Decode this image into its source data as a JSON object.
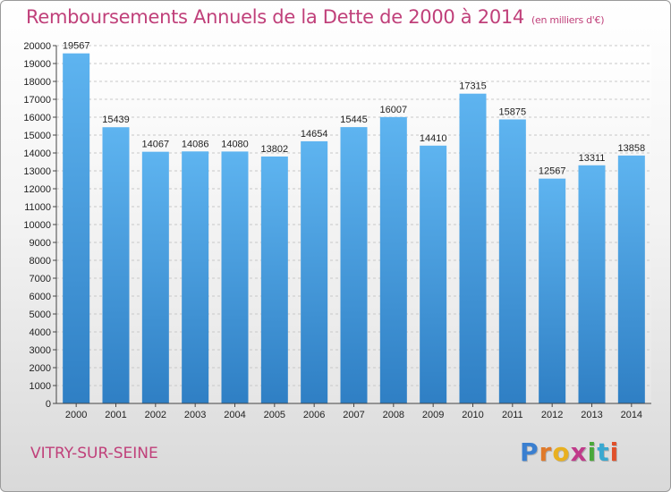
{
  "chart_data": {
    "type": "bar",
    "title": "Remboursements Annuels de la Dette de 2000 à 2014",
    "subtitle": "(en milliers d'€)",
    "categories": [
      "2000",
      "2001",
      "2002",
      "2003",
      "2004",
      "2005",
      "2006",
      "2007",
      "2008",
      "2009",
      "2010",
      "2011",
      "2012",
      "2013",
      "2014"
    ],
    "values": [
      19567,
      15439,
      14067,
      14086,
      14080,
      13802,
      14654,
      15445,
      16007,
      14410,
      17315,
      15875,
      12567,
      13311,
      13858
    ],
    "value_labels": [
      "19567",
      "15439",
      "14067",
      "14086",
      "14080",
      "13802",
      "14654",
      "15445",
      "16007",
      "14410",
      "17315",
      "15875",
      "12567",
      "13311",
      "13858"
    ],
    "ylim": [
      0,
      20000
    ],
    "yticks": [
      "0",
      "1000",
      "2000",
      "3000",
      "4000",
      "5000",
      "6000",
      "7000",
      "8000",
      "9000",
      "10000",
      "11000",
      "12000",
      "13000",
      "14000",
      "15000",
      "16000",
      "17000",
      "18000",
      "19000",
      "20000"
    ],
    "grid": true,
    "xlabel": "",
    "ylabel": "",
    "bar_color": "#4a9fe0"
  },
  "footer": {
    "city": "VITRY-SUR-SEINE"
  },
  "logo": {
    "letters": [
      "P",
      "r",
      "o",
      "x",
      "i",
      "t",
      "i"
    ],
    "colors": [
      "#3a7fd0",
      "#e07a2a",
      "#e8b020",
      "#c03a8a",
      "#4aa83a",
      "#3aa8d0",
      "#e0502a"
    ]
  }
}
